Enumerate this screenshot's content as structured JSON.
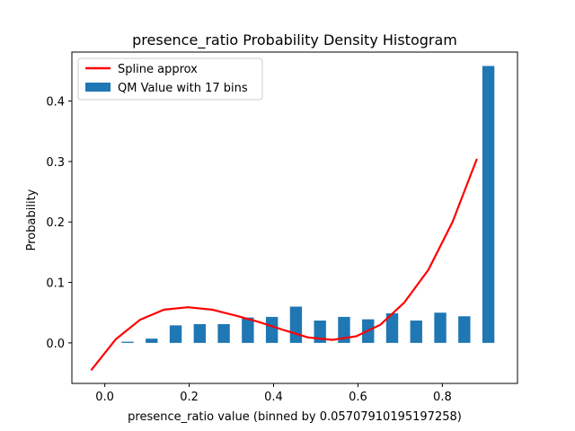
{
  "chart_data": {
    "type": "bar",
    "title": "presence_ratio Probability Density Histogram",
    "xlabel": "presence_ratio value (binned by 0.05707910195197258)",
    "ylabel": "Probability",
    "xlim": [
      -0.078,
      0.978
    ],
    "ylim": [
      -0.067,
      0.481
    ],
    "xticks": [
      0.0,
      0.2,
      0.4,
      0.6,
      0.8
    ],
    "xtick_labels": [
      "0.0",
      "0.2",
      "0.4",
      "0.6",
      "0.8"
    ],
    "yticks": [
      0.0,
      0.1,
      0.2,
      0.3,
      0.4
    ],
    "ytick_labels": [
      "0.0",
      "0.1",
      "0.2",
      "0.3",
      "0.4"
    ],
    "grid": false,
    "legend_position": "top-left",
    "bar_width": 0.0285,
    "series": [
      {
        "name": "QM Value with 17 bins",
        "type": "bar",
        "color": "#1f77b4",
        "x": [
          0.054,
          0.111,
          0.168,
          0.225,
          0.282,
          0.339,
          0.396,
          0.453,
          0.51,
          0.567,
          0.624,
          0.681,
          0.738,
          0.795,
          0.852,
          0.909
        ],
        "values": [
          0.002,
          0.007,
          0.029,
          0.031,
          0.031,
          0.042,
          0.043,
          0.06,
          0.037,
          0.043,
          0.039,
          0.049,
          0.037,
          0.05,
          0.044,
          0.458
        ]
      },
      {
        "name": "Spline approx",
        "type": "line",
        "color": "#ff0000",
        "x": [
          -0.031,
          0.026,
          0.083,
          0.14,
          0.197,
          0.254,
          0.311,
          0.368,
          0.425,
          0.482,
          0.539,
          0.596,
          0.653,
          0.71,
          0.767,
          0.824,
          0.881
        ],
        "values": [
          -0.044,
          0.006,
          0.038,
          0.055,
          0.059,
          0.055,
          0.045,
          0.034,
          0.021,
          0.009,
          0.005,
          0.011,
          0.03,
          0.067,
          0.121,
          0.2,
          0.303
        ]
      }
    ]
  }
}
